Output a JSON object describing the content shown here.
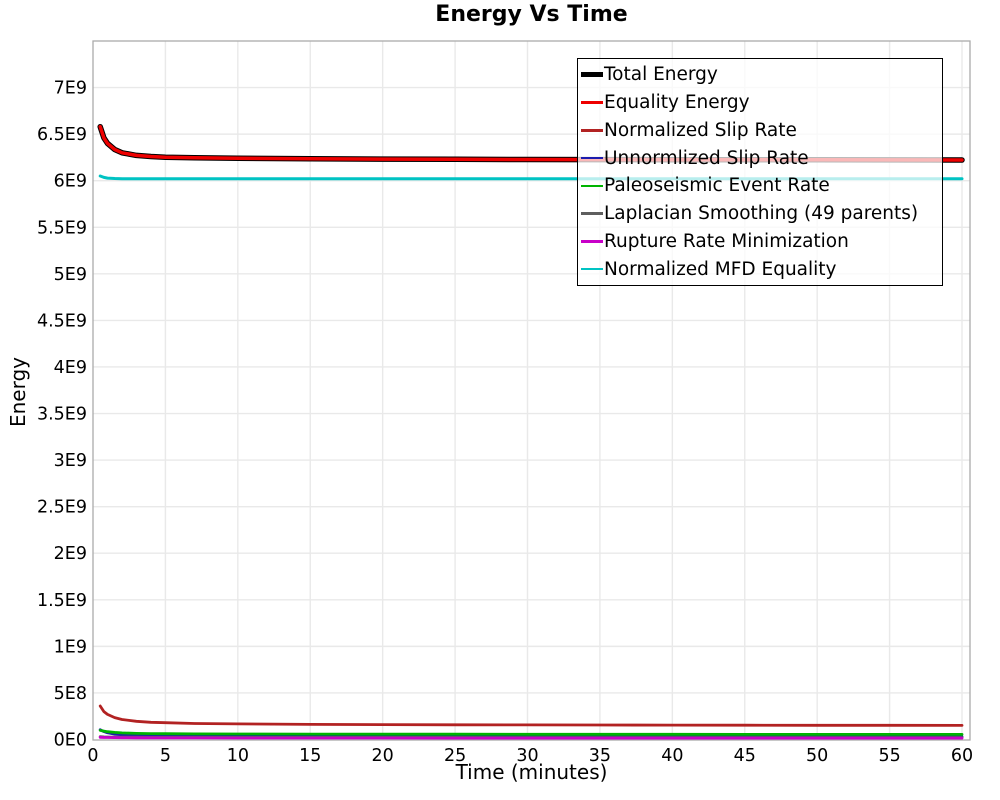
{
  "chart_data": {
    "type": "line",
    "title": "Energy Vs Time",
    "xlabel": "Time (minutes)",
    "ylabel": "Energy",
    "xlim": [
      0,
      60.6
    ],
    "ylim": [
      0,
      7500000000
    ],
    "x_ticks": [
      0,
      5,
      10,
      15,
      20,
      25,
      30,
      35,
      40,
      45,
      50,
      55,
      60
    ],
    "y_ticks": [
      {
        "v": 0,
        "label": "0E0"
      },
      {
        "v": 500000000,
        "label": "5E8"
      },
      {
        "v": 1000000000,
        "label": "1E9"
      },
      {
        "v": 1500000000,
        "label": "1.5E9"
      },
      {
        "v": 2000000000,
        "label": "2E9"
      },
      {
        "v": 2500000000,
        "label": "2.5E9"
      },
      {
        "v": 3000000000,
        "label": "3E9"
      },
      {
        "v": 3500000000,
        "label": "3.5E9"
      },
      {
        "v": 4000000000,
        "label": "4E9"
      },
      {
        "v": 4500000000,
        "label": "4.5E9"
      },
      {
        "v": 5000000000,
        "label": "5E9"
      },
      {
        "v": 5500000000,
        "label": "5.5E9"
      },
      {
        "v": 6000000000,
        "label": "6E9"
      },
      {
        "v": 6500000000,
        "label": "6.5E9"
      },
      {
        "v": 7000000000,
        "label": "7E9"
      }
    ],
    "grid": true,
    "grid_color": "#e9e9e9",
    "frame_color": "#ababab",
    "legend_position": "top-right-inside",
    "x": [
      0.5,
      0.75,
      1,
      1.5,
      2,
      3,
      4,
      5,
      7,
      10,
      15,
      20,
      25,
      30,
      35,
      40,
      45,
      50,
      55,
      60
    ],
    "series": [
      {
        "name": "Total Energy",
        "color": "#000000",
        "width": 5.5,
        "values": [
          6580000000.0,
          6460000000.0,
          6400000000.0,
          6335000000.0,
          6300000000.0,
          6272000000.0,
          6260000000.0,
          6252000000.0,
          6246000000.0,
          6240000000.0,
          6235000000.0,
          6232000000.0,
          6230000000.0,
          6228000000.0,
          6227000000.0,
          6226000000.0,
          6225000000.0,
          6224000000.0,
          6223000000.0,
          6222000000.0
        ]
      },
      {
        "name": "Equality Energy",
        "color": "#ee0000",
        "width": 3.5,
        "values": [
          6580000000.0,
          6460000000.0,
          6400000000.0,
          6335000000.0,
          6300000000.0,
          6272000000.0,
          6260000000.0,
          6252000000.0,
          6246000000.0,
          6240000000.0,
          6235000000.0,
          6232000000.0,
          6230000000.0,
          6228000000.0,
          6227000000.0,
          6226000000.0,
          6225000000.0,
          6224000000.0,
          6223000000.0,
          6222000000.0
        ]
      },
      {
        "name": "Normalized Slip Rate",
        "color": "#b22222",
        "width": 2.8,
        "values": [
          360000000.0,
          300000000.0,
          270000000.0,
          235000000.0,
          215000000.0,
          195000000.0,
          185000000.0,
          180000000.0,
          172000000.0,
          167000000.0,
          162000000.0,
          160000000.0,
          158000000.0,
          157000000.0,
          156000000.0,
          155000000.0,
          154000000.0,
          153000000.0,
          152000000.0,
          151000000.0
        ]
      },
      {
        "name": "Unnormlized Slip Rate",
        "color": "#1c1cae",
        "width": 2.8,
        "values": [
          105000000.0,
          85000000.0,
          72000000.0,
          58000000.0,
          50000000.0,
          44000000.0,
          41000000.0,
          39000000.0,
          37000000.0,
          36000000.0,
          34000000.0,
          33000000.0,
          32500000.0,
          32000000.0,
          31500000.0,
          31000000.0,
          31000000.0,
          30000000.0,
          30000000.0,
          30000000.0
        ]
      },
      {
        "name": "Paleoseismic Event Rate",
        "color": "#00b400",
        "width": 2.8,
        "values": [
          98000000.0,
          90000000.0,
          84000000.0,
          76000000.0,
          71000000.0,
          66000000.0,
          63000000.0,
          62000000.0,
          60000000.0,
          59000000.0,
          58000000.0,
          57000000.0,
          57000000.0,
          56000000.0,
          56000000.0,
          56000000.0,
          55000000.0,
          55000000.0,
          55000000.0,
          55000000.0
        ]
      },
      {
        "name": "Laplacian Smoothing (49 parents)",
        "color": "#5e5e5e",
        "width": 2.8,
        "values": [
          30000000.0,
          28000000.0,
          27000000.0,
          26000000.0,
          25000000.0,
          24500000.0,
          24000000.0,
          24000000.0,
          23500000.0,
          23000000.0,
          23000000.0,
          22500000.0,
          22500000.0,
          22000000.0,
          22000000.0,
          22000000.0,
          22000000.0,
          22000000.0,
          22000000.0,
          22000000.0
        ]
      },
      {
        "name": "Rupture Rate Minimization",
        "color": "#c800c8",
        "width": 2.8,
        "values": [
          24000000.0,
          22000000.0,
          21000000.0,
          20000000.0,
          19000000.0,
          18000000.0,
          17500000.0,
          17000000.0,
          17000000.0,
          16500000.0,
          16000000.0,
          16000000.0,
          15500000.0,
          15500000.0,
          15000000.0,
          15000000.0,
          15000000.0,
          15000000.0,
          15000000.0,
          15000000.0
        ]
      },
      {
        "name": "Normalized MFD Equality",
        "color": "#00c3c3",
        "width": 3,
        "values": [
          6050000000.0,
          6035000000.0,
          6028000000.0,
          6024000000.0,
          6022000000.0,
          6021000000.0,
          6020000000.0,
          6020000000.0,
          6020000000.0,
          6020000000.0,
          6020000000.0,
          6020000000.0,
          6020000000.0,
          6020000000.0,
          6020000000.0,
          6020000000.0,
          6020000000.0,
          6020000000.0,
          6020000000.0,
          6020000000.0
        ]
      }
    ]
  }
}
